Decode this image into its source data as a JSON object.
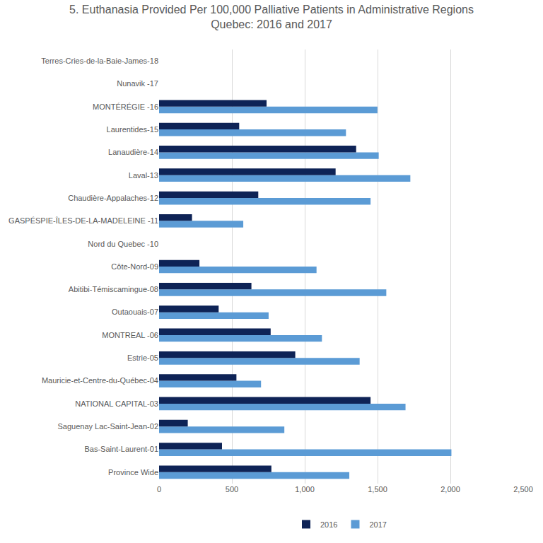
{
  "chart_data": {
    "type": "bar",
    "orientation": "horizontal",
    "title": "5. Euthanasia Provided Per 100,000 Palliative Patients in Administrative Regions",
    "subtitle": "Quebec: 2016 and 2017",
    "categories": [
      "Province Wide",
      "Bas-Saint-Laurent-01",
      "Saguenay Lac-Saint-Jean-02",
      "NATIONAL CAPITAL-03",
      "Mauricie-et-Centre-du-Québec-04",
      "Estrie-05",
      "MONTREAL -06",
      "Outaouais-07",
      "Abitibi-Témiscamingue-08",
      "Côte-Nord-09",
      "Nord du Quebec -10",
      "GASPÉSPIE-ÎLES-DE-LA-MADELEINE -11",
      "Chaudière-Appalaches-12",
      "Laval-13",
      "Lanaudière-14",
      "Laurentides-15",
      "MONTÉRÉGIE -16",
      "Nunavik -17",
      "Terres-Cries-de-la-Baie-James-18"
    ],
    "series": [
      {
        "name": "2016",
        "color": "#0e2356",
        "values": [
          771,
          432,
          197,
          1452,
          531,
          935,
          766,
          409,
          634,
          277,
          null,
          226,
          681,
          1212,
          1353,
          550,
          738,
          null,
          null
        ]
      },
      {
        "name": "2017",
        "color": "#5b9bd5",
        "values": [
          1306,
          2007,
          860,
          1692,
          700,
          1377,
          1118,
          752,
          1560,
          1081,
          null,
          578,
          1452,
          1725,
          1508,
          1283,
          1499,
          null,
          null
        ]
      }
    ],
    "xlim": [
      0,
      2500
    ],
    "xticks": [
      0,
      500,
      {
        "value": 1000,
        "label": "1,000"
      },
      {
        "value": 1500,
        "label": "1,500"
      },
      {
        "value": 2000,
        "label": "2,000"
      },
      {
        "value": 2500,
        "label": "2,500"
      }
    ],
    "grid": true,
    "legend": "bottom"
  }
}
